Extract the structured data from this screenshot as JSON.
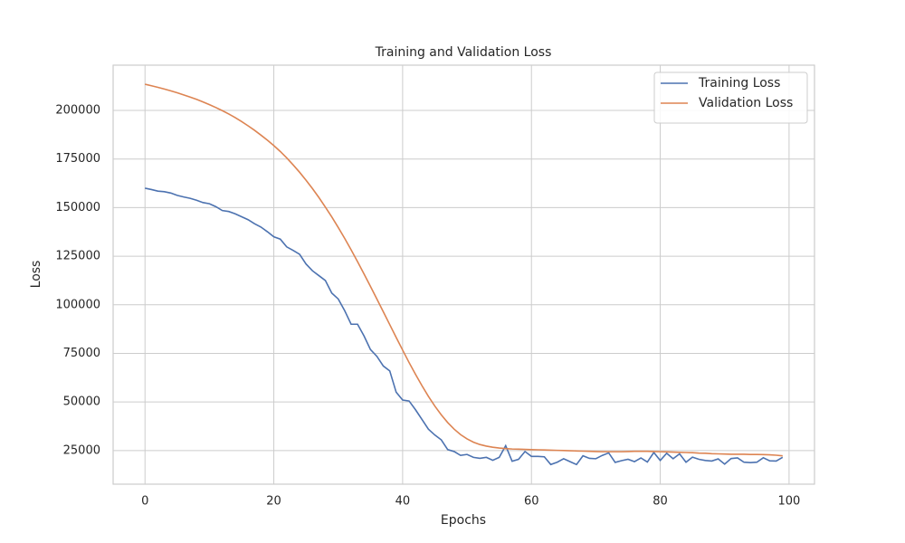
{
  "chart_data": {
    "type": "line",
    "title": "Training and Validation Loss",
    "xlabel": "Epochs",
    "ylabel": "Loss",
    "x": [
      0,
      1,
      2,
      3,
      4,
      5,
      6,
      7,
      8,
      9,
      10,
      11,
      12,
      13,
      14,
      15,
      16,
      17,
      18,
      19,
      20,
      21,
      22,
      23,
      24,
      25,
      26,
      27,
      28,
      29,
      30,
      31,
      32,
      33,
      34,
      35,
      36,
      37,
      38,
      39,
      40,
      41,
      42,
      43,
      44,
      45,
      46,
      47,
      48,
      49,
      50,
      51,
      52,
      53,
      54,
      55,
      56,
      57,
      58,
      59,
      60,
      61,
      62,
      63,
      64,
      65,
      66,
      67,
      68,
      69,
      70,
      71,
      72,
      73,
      74,
      75,
      76,
      77,
      78,
      79,
      80,
      81,
      82,
      83,
      84,
      85,
      86,
      87,
      88,
      89,
      90,
      91,
      92,
      93,
      94,
      95,
      96,
      97,
      98,
      99
    ],
    "series": [
      {
        "name": "Training Loss",
        "color": "#4c72b0",
        "values": [
          160000,
          159300,
          158500,
          158200,
          157500,
          156300,
          155500,
          154800,
          153800,
          152600,
          152000,
          150500,
          148500,
          148000,
          146800,
          145300,
          143800,
          141700,
          140000,
          137600,
          135000,
          133800,
          129800,
          128000,
          126000,
          121000,
          117500,
          115000,
          112500,
          106000,
          103000,
          97000,
          90000,
          90000,
          84000,
          77000,
          73500,
          68500,
          66000,
          55000,
          51000,
          50500,
          46000,
          41000,
          36000,
          33000,
          30500,
          25500,
          24500,
          22500,
          23000,
          21500,
          21000,
          21500,
          20000,
          21500,
          27500,
          19500,
          20500,
          24500,
          22000,
          22000,
          21800,
          17800,
          19000,
          20800,
          19300,
          17800,
          22300,
          21000,
          20800,
          22500,
          23800,
          18900,
          19800,
          20500,
          19300,
          21200,
          19100,
          24000,
          19900,
          23600,
          20800,
          23300,
          19000,
          21600,
          20500,
          19900,
          19600,
          20700,
          18000,
          20900,
          21200,
          19000,
          18800,
          19000,
          21300,
          19700,
          19600,
          21500
        ]
      },
      {
        "name": "Validation Loss",
        "color": "#dd8452",
        "values": [
          213500,
          212700,
          211900,
          211000,
          210100,
          209100,
          208000,
          206900,
          205700,
          204400,
          203000,
          201500,
          199900,
          198200,
          196300,
          194300,
          192100,
          189800,
          187300,
          184700,
          181900,
          178900,
          175600,
          172000,
          168200,
          164100,
          159800,
          155200,
          150300,
          145200,
          139800,
          134200,
          128300,
          122200,
          115900,
          109500,
          103000,
          96400,
          89800,
          83200,
          76700,
          70300,
          64200,
          58400,
          52900,
          47900,
          43400,
          39400,
          36000,
          33200,
          31000,
          29300,
          28100,
          27300,
          26700,
          26300,
          26000,
          25800,
          25700,
          25600,
          25500,
          25400,
          25300,
          25200,
          25100,
          25000,
          24900,
          24800,
          24700,
          24600,
          24500,
          24400,
          24400,
          24400,
          24400,
          24500,
          24600,
          24600,
          24600,
          24500,
          24400,
          24300,
          24200,
          24100,
          24000,
          23900,
          23700,
          23600,
          23400,
          23300,
          23200,
          23100,
          23100,
          23100,
          23000,
          23000,
          22900,
          22800,
          22600,
          22300
        ]
      }
    ],
    "xlim": [
      -4.95,
      103.95
    ],
    "ylim": [
      7700,
      223300
    ],
    "xticks": [
      0,
      20,
      40,
      60,
      80,
      100
    ],
    "yticks": [
      25000,
      50000,
      75000,
      100000,
      125000,
      150000,
      175000,
      200000
    ],
    "grid": true,
    "legend": "upper right"
  }
}
